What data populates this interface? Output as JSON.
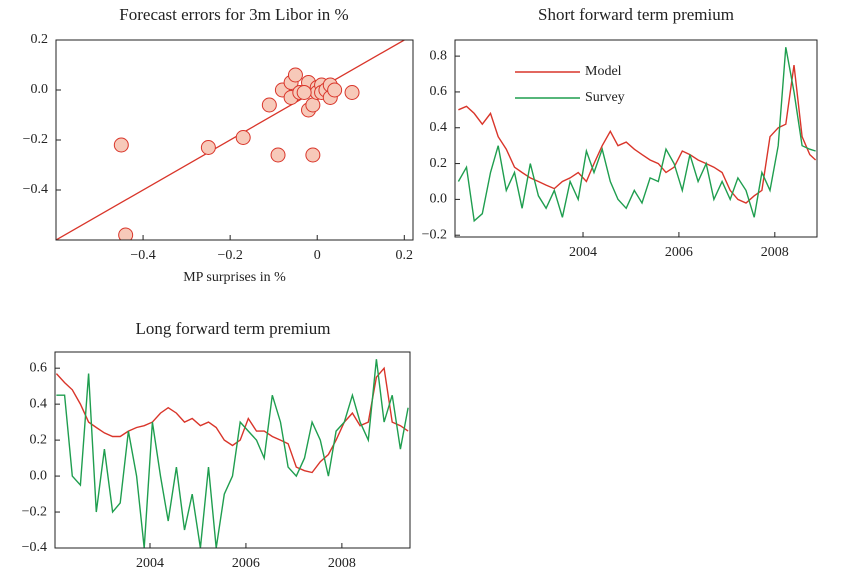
{
  "chart_data": [
    {
      "type": "scatter",
      "title": "Forecast errors for 3m Libor in %",
      "xlabel": "MP surprises in %",
      "x": [
        -0.45,
        -0.44,
        -0.25,
        -0.17,
        -0.11,
        -0.09,
        -0.08,
        -0.06,
        -0.05,
        -0.06,
        -0.04,
        -0.02,
        -0.02,
        -0.01,
        -0.01,
        0.0,
        0.0,
        0.01,
        0.01,
        0.02,
        0.03,
        0.03,
        0.04,
        0.08,
        -0.03
      ],
      "y": [
        -0.22,
        -0.58,
        -0.23,
        -0.19,
        -0.06,
        -0.26,
        0.0,
        0.03,
        0.06,
        -0.03,
        -0.01,
        0.03,
        -0.08,
        -0.26,
        -0.06,
        0.01,
        -0.01,
        0.02,
        -0.01,
        0.0,
        -0.03,
        0.02,
        0.0,
        -0.01,
        -0.01
      ],
      "color": "#d9352a",
      "fill": "#f7c9b9",
      "fit_x": [
        -0.6,
        0.2
      ],
      "fit_y": [
        -0.6,
        0.2
      ],
      "xlim": [
        -0.6,
        0.22
      ],
      "ylim": [
        -0.6,
        0.2
      ],
      "xticks": [
        {
          "value": -0.4,
          "label": "−0.4"
        },
        {
          "value": -0.2,
          "label": "−0.2"
        },
        0,
        0.2
      ],
      "yticks": [
        0.2,
        {
          "value": 0,
          "label": "0.0"
        },
        {
          "value": -0.2,
          "label": "−0.2"
        },
        {
          "value": -0.4,
          "label": "−0.4"
        }
      ]
    },
    {
      "type": "line",
      "title": "Short forward term premium",
      "legend": "upper left",
      "x": [
        2001.4,
        2001.57,
        2001.73,
        2001.9,
        2002.07,
        2002.23,
        2002.4,
        2002.57,
        2002.73,
        2002.9,
        2003.07,
        2003.23,
        2003.4,
        2003.57,
        2003.73,
        2003.9,
        2004.07,
        2004.23,
        2004.4,
        2004.57,
        2004.73,
        2004.9,
        2005.07,
        2005.23,
        2005.4,
        2005.57,
        2005.73,
        2005.9,
        2006.07,
        2006.23,
        2006.4,
        2006.57,
        2006.73,
        2006.9,
        2007.07,
        2007.23,
        2007.4,
        2007.57,
        2007.73,
        2007.9,
        2008.07,
        2008.23,
        2008.4,
        2008.57,
        2008.73,
        2008.85
      ],
      "series": [
        {
          "name": "Model",
          "color": "#d9352a",
          "values": [
            0.5,
            0.52,
            0.48,
            0.42,
            0.48,
            0.35,
            0.28,
            0.18,
            0.15,
            0.12,
            0.1,
            0.08,
            0.06,
            0.1,
            0.12,
            0.15,
            0.1,
            0.2,
            0.3,
            0.38,
            0.3,
            0.32,
            0.28,
            0.25,
            0.22,
            0.2,
            0.15,
            0.18,
            0.27,
            0.25,
            0.22,
            0.2,
            0.18,
            0.15,
            0.05,
            0.0,
            -0.02,
            0.02,
            0.05,
            0.35,
            0.4,
            0.42,
            0.75,
            0.35,
            0.25,
            0.22
          ]
        },
        {
          "name": "Survey",
          "color": "#1f9e4f",
          "values": [
            0.1,
            0.18,
            -0.12,
            -0.08,
            0.15,
            0.3,
            0.05,
            0.15,
            -0.05,
            0.2,
            0.02,
            -0.05,
            0.05,
            -0.1,
            0.1,
            0.0,
            0.27,
            0.15,
            0.28,
            0.1,
            0.0,
            -0.05,
            0.05,
            -0.02,
            0.12,
            0.1,
            0.28,
            0.2,
            0.05,
            0.25,
            0.1,
            0.2,
            0.0,
            0.1,
            0.0,
            0.12,
            0.05,
            -0.1,
            0.15,
            0.05,
            0.3,
            0.85,
            0.6,
            0.3,
            0.28,
            0.27
          ]
        }
      ],
      "xlim": [
        2001.33,
        2008.88
      ],
      "ylim": [
        -0.21,
        0.89
      ],
      "xticks": [
        2004,
        2006,
        2008
      ],
      "yticks": [
        0.8,
        0.6,
        0.4,
        0.2,
        {
          "value": 0,
          "label": "0.0"
        },
        {
          "value": -0.2,
          "label": "−0.2"
        }
      ]
    },
    {
      "type": "line",
      "title": "Long forward term premium",
      "x": [
        2002.05,
        2002.22,
        2002.38,
        2002.55,
        2002.72,
        2002.88,
        2003.05,
        2003.22,
        2003.38,
        2003.55,
        2003.72,
        2003.88,
        2004.05,
        2004.22,
        2004.38,
        2004.55,
        2004.72,
        2004.88,
        2005.05,
        2005.22,
        2005.38,
        2005.55,
        2005.72,
        2005.88,
        2006.05,
        2006.22,
        2006.38,
        2006.55,
        2006.72,
        2006.88,
        2007.05,
        2007.22,
        2007.38,
        2007.55,
        2007.72,
        2007.88,
        2008.05,
        2008.22,
        2008.38,
        2008.55,
        2008.72,
        2008.88,
        2009.05,
        2009.22,
        2009.38
      ],
      "series": [
        {
          "name": "Model",
          "color": "#d9352a",
          "values": [
            0.57,
            0.52,
            0.48,
            0.4,
            0.3,
            0.27,
            0.24,
            0.22,
            0.22,
            0.25,
            0.27,
            0.28,
            0.3,
            0.35,
            0.38,
            0.35,
            0.3,
            0.32,
            0.28,
            0.3,
            0.27,
            0.2,
            0.17,
            0.2,
            0.32,
            0.25,
            0.25,
            0.22,
            0.2,
            0.18,
            0.05,
            0.03,
            0.02,
            0.08,
            0.12,
            0.2,
            0.3,
            0.35,
            0.28,
            0.3,
            0.55,
            0.6,
            0.3,
            0.28,
            0.25
          ]
        },
        {
          "name": "Survey",
          "color": "#1f9e4f",
          "values": [
            0.45,
            0.45,
            0.0,
            -0.05,
            0.57,
            -0.2,
            0.15,
            -0.2,
            -0.15,
            0.25,
            0.0,
            -0.4,
            0.3,
            0.0,
            -0.25,
            0.05,
            -0.3,
            -0.1,
            -0.4,
            0.05,
            -0.4,
            -0.1,
            0.0,
            0.3,
            0.25,
            0.2,
            0.1,
            0.45,
            0.3,
            0.05,
            0.0,
            0.1,
            0.3,
            0.2,
            0.0,
            0.25,
            0.3,
            0.45,
            0.3,
            0.2,
            0.65,
            0.3,
            0.45,
            0.15,
            0.38
          ]
        }
      ],
      "xlim": [
        2002.02,
        2009.42
      ],
      "ylim": [
        -0.4,
        0.69
      ],
      "xticks": [
        2004,
        2006,
        2008
      ],
      "yticks": [
        0.6,
        0.4,
        0.2,
        {
          "value": 0,
          "label": "0.0"
        },
        {
          "value": -0.2,
          "label": "−0.2"
        },
        {
          "value": -0.4,
          "label": "−0.4"
        }
      ]
    }
  ]
}
